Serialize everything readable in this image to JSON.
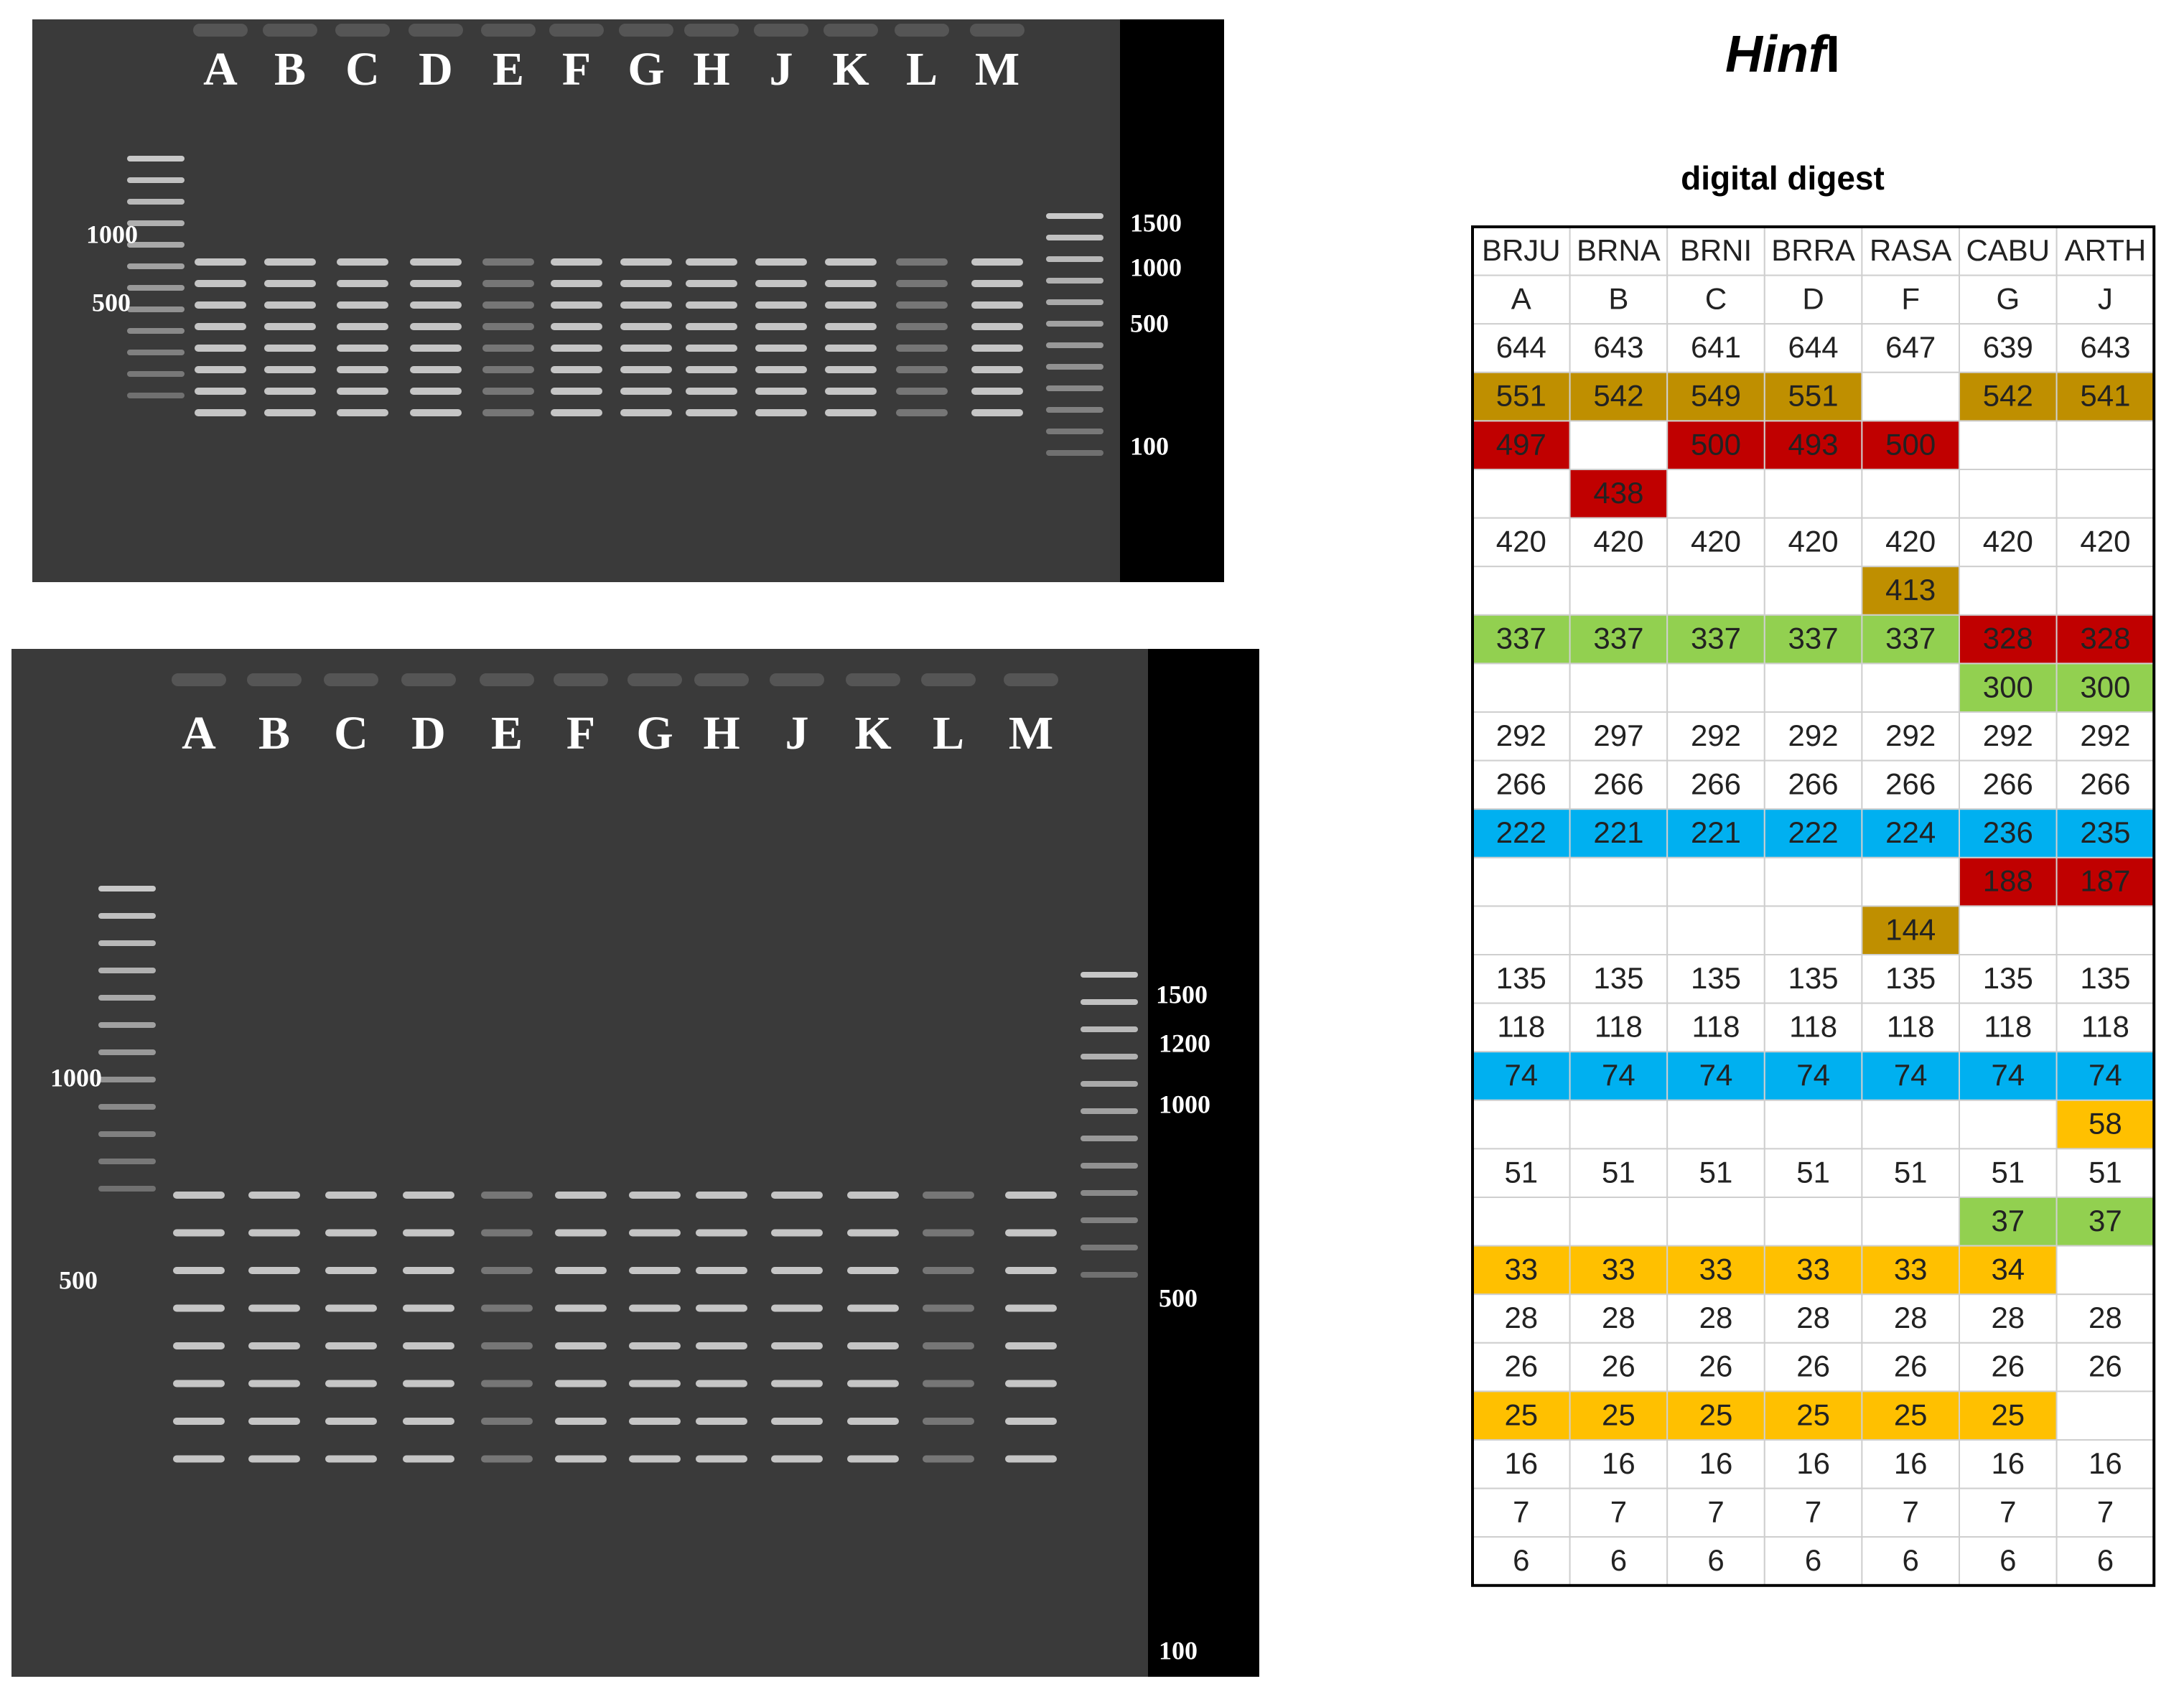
{
  "title": {
    "italic": "Hinf",
    "plain": "I"
  },
  "subtitle": "digital digest",
  "gels": [
    {
      "lanes": [
        "A",
        "B",
        "C",
        "D",
        "E",
        "F",
        "G",
        "H",
        "J",
        "K",
        "L",
        "M"
      ],
      "left_markers": [
        "1000",
        "500"
      ],
      "right_markers": [
        "1500",
        "1000",
        "500",
        "100"
      ]
    },
    {
      "lanes": [
        "A",
        "B",
        "C",
        "D",
        "E",
        "F",
        "G",
        "H",
        "J",
        "K",
        "L",
        "M"
      ],
      "left_markers": [
        "1000",
        "500"
      ],
      "right_markers": [
        "1500",
        "1200",
        "1000",
        "500",
        "100"
      ]
    }
  ],
  "table": {
    "headers": [
      "BRJU",
      "BRNA",
      "BRNI",
      "BRRA",
      "RASA",
      "CABU",
      "ARTH"
    ],
    "lanes": [
      "A",
      "B",
      "C",
      "D",
      "F",
      "G",
      "J"
    ],
    "rows": [
      {
        "cells": [
          644,
          643,
          641,
          644,
          647,
          639,
          643
        ],
        "colors": [
          null,
          null,
          null,
          null,
          null,
          null,
          null
        ]
      },
      {
        "cells": [
          551,
          542,
          549,
          551,
          null,
          542,
          541
        ],
        "colors": [
          "#bf8f00",
          "#bf8f00",
          "#bf8f00",
          "#bf8f00",
          null,
          "#bf8f00",
          "#bf8f00"
        ]
      },
      {
        "cells": [
          497,
          null,
          500,
          493,
          500,
          null,
          null
        ],
        "colors": [
          "#c00000",
          null,
          "#c00000",
          "#c00000",
          "#c00000",
          null,
          null
        ]
      },
      {
        "cells": [
          null,
          438,
          null,
          null,
          null,
          null,
          null
        ],
        "colors": [
          null,
          "#c00000",
          null,
          null,
          null,
          null,
          null
        ]
      },
      {
        "cells": [
          420,
          420,
          420,
          420,
          420,
          420,
          420
        ],
        "colors": [
          null,
          null,
          null,
          null,
          null,
          null,
          null
        ]
      },
      {
        "cells": [
          null,
          null,
          null,
          null,
          413,
          null,
          null
        ],
        "colors": [
          null,
          null,
          null,
          null,
          "#bf8f00",
          null,
          null
        ]
      },
      {
        "cells": [
          337,
          337,
          337,
          337,
          337,
          328,
          328
        ],
        "colors": [
          "#92d050",
          "#92d050",
          "#92d050",
          "#92d050",
          "#92d050",
          "#c00000",
          "#c00000"
        ]
      },
      {
        "cells": [
          null,
          null,
          null,
          null,
          null,
          300,
          300
        ],
        "colors": [
          null,
          null,
          null,
          null,
          null,
          "#92d050",
          "#92d050"
        ]
      },
      {
        "cells": [
          292,
          297,
          292,
          292,
          292,
          292,
          292
        ],
        "colors": [
          null,
          null,
          null,
          null,
          null,
          null,
          null
        ]
      },
      {
        "cells": [
          266,
          266,
          266,
          266,
          266,
          266,
          266
        ],
        "colors": [
          null,
          null,
          null,
          null,
          null,
          null,
          null
        ]
      },
      {
        "cells": [
          222,
          221,
          221,
          222,
          224,
          236,
          235
        ],
        "colors": [
          "#00b0f0",
          "#00b0f0",
          "#00b0f0",
          "#00b0f0",
          "#00b0f0",
          "#00b0f0",
          "#00b0f0"
        ]
      },
      {
        "cells": [
          null,
          null,
          null,
          null,
          null,
          188,
          187
        ],
        "colors": [
          null,
          null,
          null,
          null,
          null,
          "#c00000",
          "#c00000"
        ]
      },
      {
        "cells": [
          null,
          null,
          null,
          null,
          144,
          null,
          null
        ],
        "colors": [
          null,
          null,
          null,
          null,
          "#bf8f00",
          null,
          null
        ]
      },
      {
        "cells": [
          135,
          135,
          135,
          135,
          135,
          135,
          135
        ],
        "colors": [
          null,
          null,
          null,
          null,
          null,
          null,
          null
        ]
      },
      {
        "cells": [
          118,
          118,
          118,
          118,
          118,
          118,
          118
        ],
        "colors": [
          null,
          null,
          null,
          null,
          null,
          null,
          null
        ]
      },
      {
        "cells": [
          74,
          74,
          74,
          74,
          74,
          74,
          74
        ],
        "colors": [
          "#00b0f0",
          "#00b0f0",
          "#00b0f0",
          "#00b0f0",
          "#00b0f0",
          "#00b0f0",
          "#00b0f0"
        ]
      },
      {
        "cells": [
          null,
          null,
          null,
          null,
          null,
          null,
          58
        ],
        "colors": [
          null,
          null,
          null,
          null,
          null,
          null,
          "#ffc000"
        ]
      },
      {
        "cells": [
          51,
          51,
          51,
          51,
          51,
          51,
          51
        ],
        "colors": [
          null,
          null,
          null,
          null,
          null,
          null,
          null
        ]
      },
      {
        "cells": [
          null,
          null,
          null,
          null,
          null,
          37,
          37
        ],
        "colors": [
          null,
          null,
          null,
          null,
          null,
          "#92d050",
          "#92d050"
        ]
      },
      {
        "cells": [
          33,
          33,
          33,
          33,
          33,
          34,
          null
        ],
        "colors": [
          "#ffc000",
          "#ffc000",
          "#ffc000",
          "#ffc000",
          "#ffc000",
          "#ffc000",
          null
        ]
      },
      {
        "cells": [
          28,
          28,
          28,
          28,
          28,
          28,
          28
        ],
        "colors": [
          null,
          null,
          null,
          null,
          null,
          null,
          null
        ]
      },
      {
        "cells": [
          26,
          26,
          26,
          26,
          26,
          26,
          26
        ],
        "colors": [
          null,
          null,
          null,
          null,
          null,
          null,
          null
        ]
      },
      {
        "cells": [
          25,
          25,
          25,
          25,
          25,
          25,
          null
        ],
        "colors": [
          "#ffc000",
          "#ffc000",
          "#ffc000",
          "#ffc000",
          "#ffc000",
          "#ffc000",
          null
        ]
      },
      {
        "cells": [
          16,
          16,
          16,
          16,
          16,
          16,
          16
        ],
        "colors": [
          null,
          null,
          null,
          null,
          null,
          null,
          null
        ]
      },
      {
        "cells": [
          7,
          7,
          7,
          7,
          7,
          7,
          7
        ],
        "colors": [
          null,
          null,
          null,
          null,
          null,
          null,
          null
        ]
      },
      {
        "cells": [
          6,
          6,
          6,
          6,
          6,
          6,
          6
        ],
        "colors": [
          null,
          null,
          null,
          null,
          null,
          null,
          null
        ]
      }
    ]
  }
}
